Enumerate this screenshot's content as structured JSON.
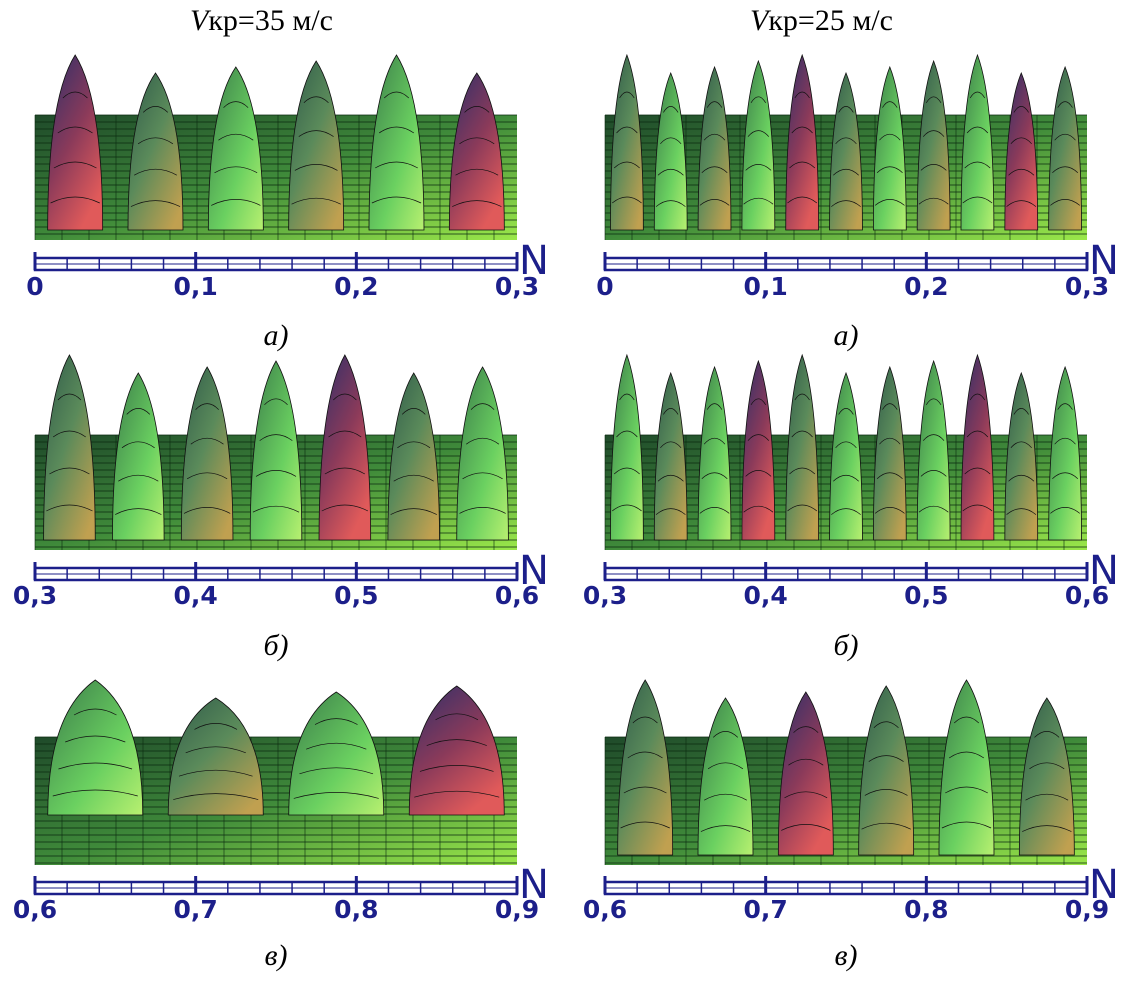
{
  "columns": [
    {
      "var": "V",
      "rest": "кр=35 м/с"
    },
    {
      "var": "V",
      "rest": "кр=25 м/с"
    }
  ],
  "panels": [
    [
      {
        "caption": "а)",
        "axis": "N",
        "ticks": [
          "0",
          "0,1",
          "0,2",
          "0,3"
        ]
      },
      {
        "caption": "б)",
        "axis": "N",
        "ticks": [
          "0,3",
          "0,4",
          "0,5",
          "0,6"
        ]
      },
      {
        "caption": "в)",
        "axis": "N",
        "ticks": [
          "0,6",
          "0,7",
          "0,8",
          "0,9"
        ]
      }
    ],
    [
      {
        "caption": "а)",
        "axis": "N",
        "ticks": [
          "0",
          "0,1",
          "0,2",
          "0,3"
        ]
      },
      {
        "caption": "б)",
        "axis": "N",
        "ticks": [
          "0,3",
          "0,4",
          "0,5",
          "0,6"
        ]
      },
      {
        "caption": "в)",
        "axis": "N",
        "ticks": [
          "0,6",
          "0,7",
          "0,8",
          "0,9"
        ]
      }
    ]
  ]
}
